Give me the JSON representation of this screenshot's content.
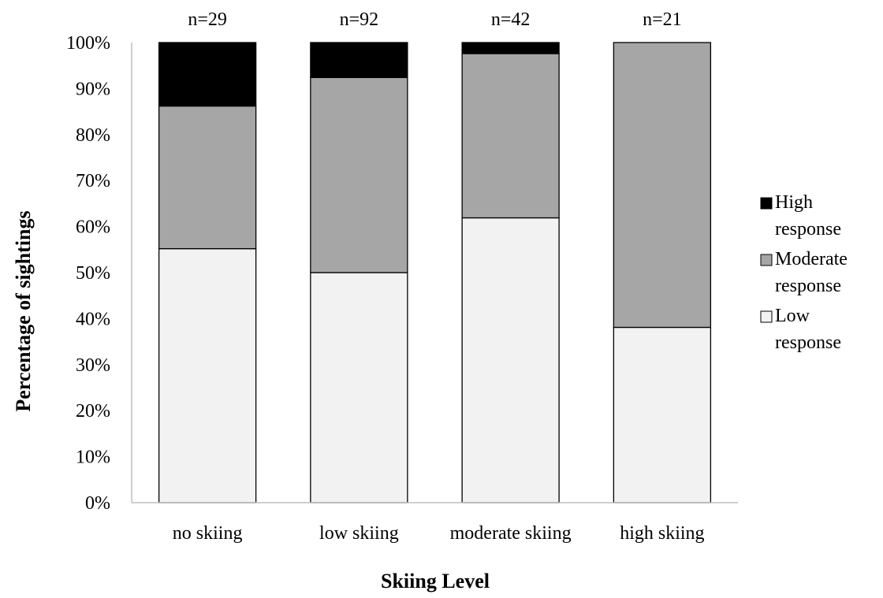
{
  "chart_data": {
    "type": "bar",
    "stacked": true,
    "categories": [
      "no skiing",
      "low skiing",
      "moderate skiing",
      "high skiing"
    ],
    "sample_sizes": [
      "n=29",
      "n=92",
      "n=42",
      "n=21"
    ],
    "series": [
      {
        "name": "Low response",
        "values": [
          55.2,
          50.0,
          61.9,
          38.1
        ],
        "color": "#f2f2f2"
      },
      {
        "name": "Moderate response",
        "values": [
          31.0,
          42.4,
          35.7,
          61.9
        ],
        "color": "#a6a6a6"
      },
      {
        "name": "High response",
        "values": [
          13.8,
          7.6,
          2.4,
          0.0
        ],
        "color": "#000000"
      }
    ],
    "legend": [
      {
        "line1": "High",
        "line2": "response",
        "color": "#000000"
      },
      {
        "line1": "Moderate",
        "line2": "response",
        "color": "#a6a6a6"
      },
      {
        "line1": "Low",
        "line2": "response",
        "color": "#f2f2f2"
      }
    ],
    "title": "",
    "xlabel": "Skiing Level",
    "ylabel": "Percentage of sightings",
    "ylim": [
      0,
      100
    ],
    "yticks": [
      "0%",
      "10%",
      "20%",
      "30%",
      "40%",
      "50%",
      "60%",
      "70%",
      "80%",
      "90%",
      "100%"
    ],
    "legend_position": "right",
    "grid": false
  }
}
